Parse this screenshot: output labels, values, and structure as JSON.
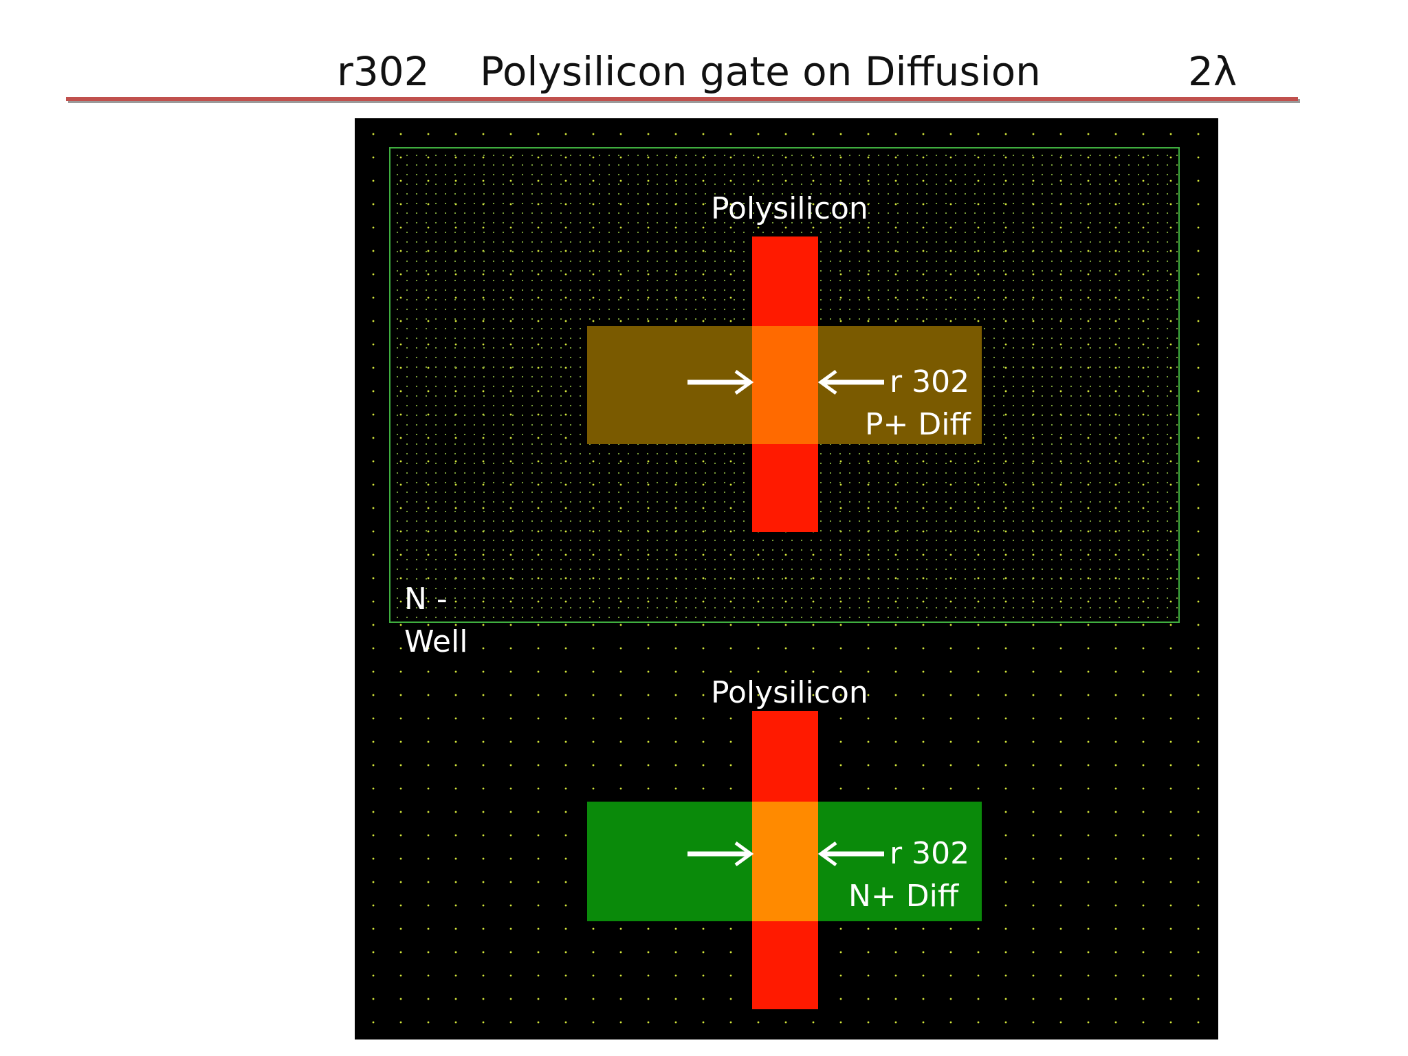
{
  "header": {
    "rule_id": "r302",
    "rule_name": "Polysilicon gate on Diffusion",
    "rule_value": "2λ"
  },
  "layout": {
    "top_structure": {
      "poly_label": "Polysilicon",
      "rule_label": "r 302",
      "diff_label": "P+ Diff",
      "well_label_line1": "N -",
      "well_label_line2": "Well"
    },
    "bottom_structure": {
      "poly_label": "Polysilicon",
      "rule_label": "r 302",
      "diff_label": "N+ Diff"
    }
  },
  "colors": {
    "title_rule": "#c0504d",
    "canvas_background": "#000000",
    "grid_dots": "#d4e63a",
    "n_well_outline": "#3fae3f",
    "polysilicon": "#ff1a00",
    "p_diffusion": "#7a5a00",
    "n_diffusion": "#0a8a0a",
    "gate_overlap_p": "#ff6a00",
    "gate_overlap_n": "#ff8a00",
    "arrows_and_text": "#ffffff"
  }
}
